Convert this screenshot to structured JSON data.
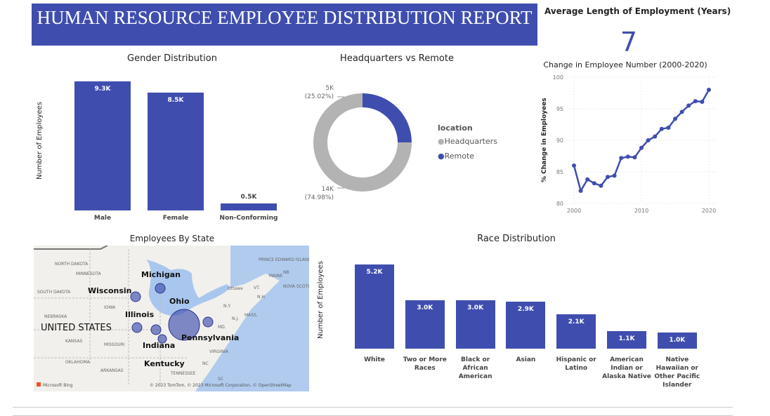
{
  "header": {
    "title": "HUMAN RESOURCE EMPLOYEE DISTRIBUTION REPORT"
  },
  "kpi": {
    "label": "Average Length of Employment (Years)",
    "value": "7"
  },
  "colors": {
    "accent": "#3f4eae",
    "headquarters": "#b3b3b3",
    "water": "#a9c6ee",
    "land": "#f1f0ec"
  },
  "gender": {
    "title": "Gender Distribution",
    "ylabel": "Number of Employees",
    "categories": [
      "Male",
      "Female",
      "Non-Conforming"
    ],
    "values": [
      9.3,
      8.5,
      0.5
    ],
    "labels": [
      "9.3K",
      "8.5K",
      "0.5K"
    ]
  },
  "location": {
    "title": "Headquarters vs Remote",
    "legend_title": "location",
    "items": [
      {
        "name": "Headquarters",
        "value_label": "14K",
        "pct": "(74.98%)",
        "pct_value": 74.98
      },
      {
        "name": "Remote",
        "value_label": "5K",
        "pct": "(25.02%)",
        "pct_value": 25.02
      }
    ]
  },
  "chart_data": [
    {
      "type": "line",
      "title": "Change in Employee Number (2000-2020)",
      "xlabel": "",
      "ylabel": "% Change in Employees",
      "ylim": [
        80,
        100
      ],
      "yticks": [
        "80",
        "85",
        "90",
        "95",
        "100"
      ],
      "xticks": [
        "2000",
        "2010",
        "2020"
      ],
      "grid": true,
      "x": [
        2000,
        2001,
        2002,
        2003,
        2004,
        2005,
        2006,
        2007,
        2008,
        2009,
        2010,
        2011,
        2012,
        2013,
        2014,
        2015,
        2016,
        2017,
        2018,
        2019,
        2020
      ],
      "y": [
        86,
        82,
        83.8,
        83.2,
        82.8,
        84.2,
        84.4,
        87.2,
        87.4,
        87.3,
        88.8,
        90,
        90.6,
        91.8,
        92,
        93.4,
        94.5,
        95.5,
        96.2,
        96.1,
        98
      ]
    },
    {
      "type": "bar",
      "title": "Race Distribution",
      "ylabel": "Number of Employees",
      "categories": [
        "White",
        "Two or More Races",
        "Black or African American",
        "Asian",
        "Hispanic or Latino",
        "American Indian or Alaska Native",
        "Native Hawaiian or Other Pacific Islander"
      ],
      "values": [
        5.2,
        3.0,
        3.0,
        2.9,
        2.1,
        1.1,
        1.0
      ],
      "labels": [
        "5.2K",
        "3.0K",
        "3.0K",
        "2.9K",
        "2.1K",
        "1.1K",
        "1.0K"
      ]
    }
  ],
  "map": {
    "title": "Employees By State",
    "bubble_labels": [
      "Michigan",
      "Wisconsin",
      "Ohio",
      "Illinois",
      "Indiana",
      "Pennsylvania",
      "Kentucky"
    ],
    "country_label": "UNITED STATES",
    "base_labels": [
      "NORTH DAKOTA",
      "MINNESOTA",
      "SOUTH DAKOTA",
      "IOWA",
      "NEBRASKA",
      "KANSAS",
      "MISSOURI",
      "OKLAHOMA",
      "ARKANSAS",
      "TENNESSEE",
      "VIRGINIA",
      "NC",
      "SC",
      "N.Y.",
      "MASS.",
      "MAINE",
      "VT.",
      "N.H.",
      "Ottawa",
      "NB",
      "PRINCE EDWARD ISLAND",
      "NOVA SCOTIA",
      "MD.",
      "N.J."
    ],
    "logo": "Microsoft Bing",
    "attribution": "© 2023 TomTom, © 2023 Microsoft Corporation, © OpenStreetMap"
  }
}
